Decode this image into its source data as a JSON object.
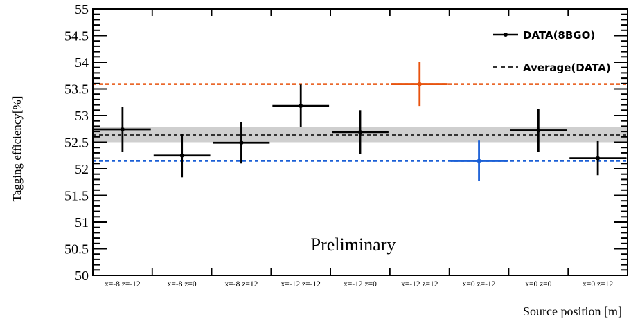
{
  "chart_data": {
    "type": "scatter",
    "title": "",
    "xlabel": "Source position [m]",
    "ylabel": "Tagging efficiency[%]",
    "annotation": "Preliminary",
    "ylim": [
      50,
      55
    ],
    "yticks": [
      50,
      50.5,
      51,
      51.5,
      52,
      52.5,
      53,
      53.5,
      54,
      54.5,
      55
    ],
    "ytick_labels": [
      "50",
      "50.5",
      "51",
      "51.5",
      "52",
      "52.5",
      "53",
      "53.5",
      "54",
      "54.5",
      "55"
    ],
    "categories": [
      "x=-8 z=-12",
      "x=-8 z=0",
      "x=-8 z=12",
      "x=-12 z=-12",
      "x=-12 z=0",
      "x=-12 z=12",
      "x=0 z=-12",
      "x=0 z=0",
      "x=0 z=12"
    ],
    "series": [
      {
        "name": "DATA(8BGO)",
        "values": [
          52.74,
          52.25,
          52.49,
          53.18,
          52.69,
          53.59,
          52.15,
          52.72,
          52.2
        ],
        "errors": [
          0.42,
          0.41,
          0.39,
          0.4,
          0.41,
          0.41,
          0.38,
          0.4,
          0.32
        ],
        "colors": [
          "#000000",
          "#000000",
          "#000000",
          "#000000",
          "#000000",
          "#e8530e",
          "#1a5fd6",
          "#000000",
          "#000000"
        ]
      }
    ],
    "average": {
      "name": "Average(DATA)",
      "value": 52.64,
      "band_low": 52.5,
      "band_high": 52.78,
      "color": "#333333",
      "band_color": "#cfcfcf"
    },
    "reference_lines": [
      {
        "value": 53.59,
        "color": "#e8530e"
      },
      {
        "value": 52.15,
        "color": "#1a5fd6"
      }
    ],
    "legend_position": "top-right",
    "grid": false
  }
}
